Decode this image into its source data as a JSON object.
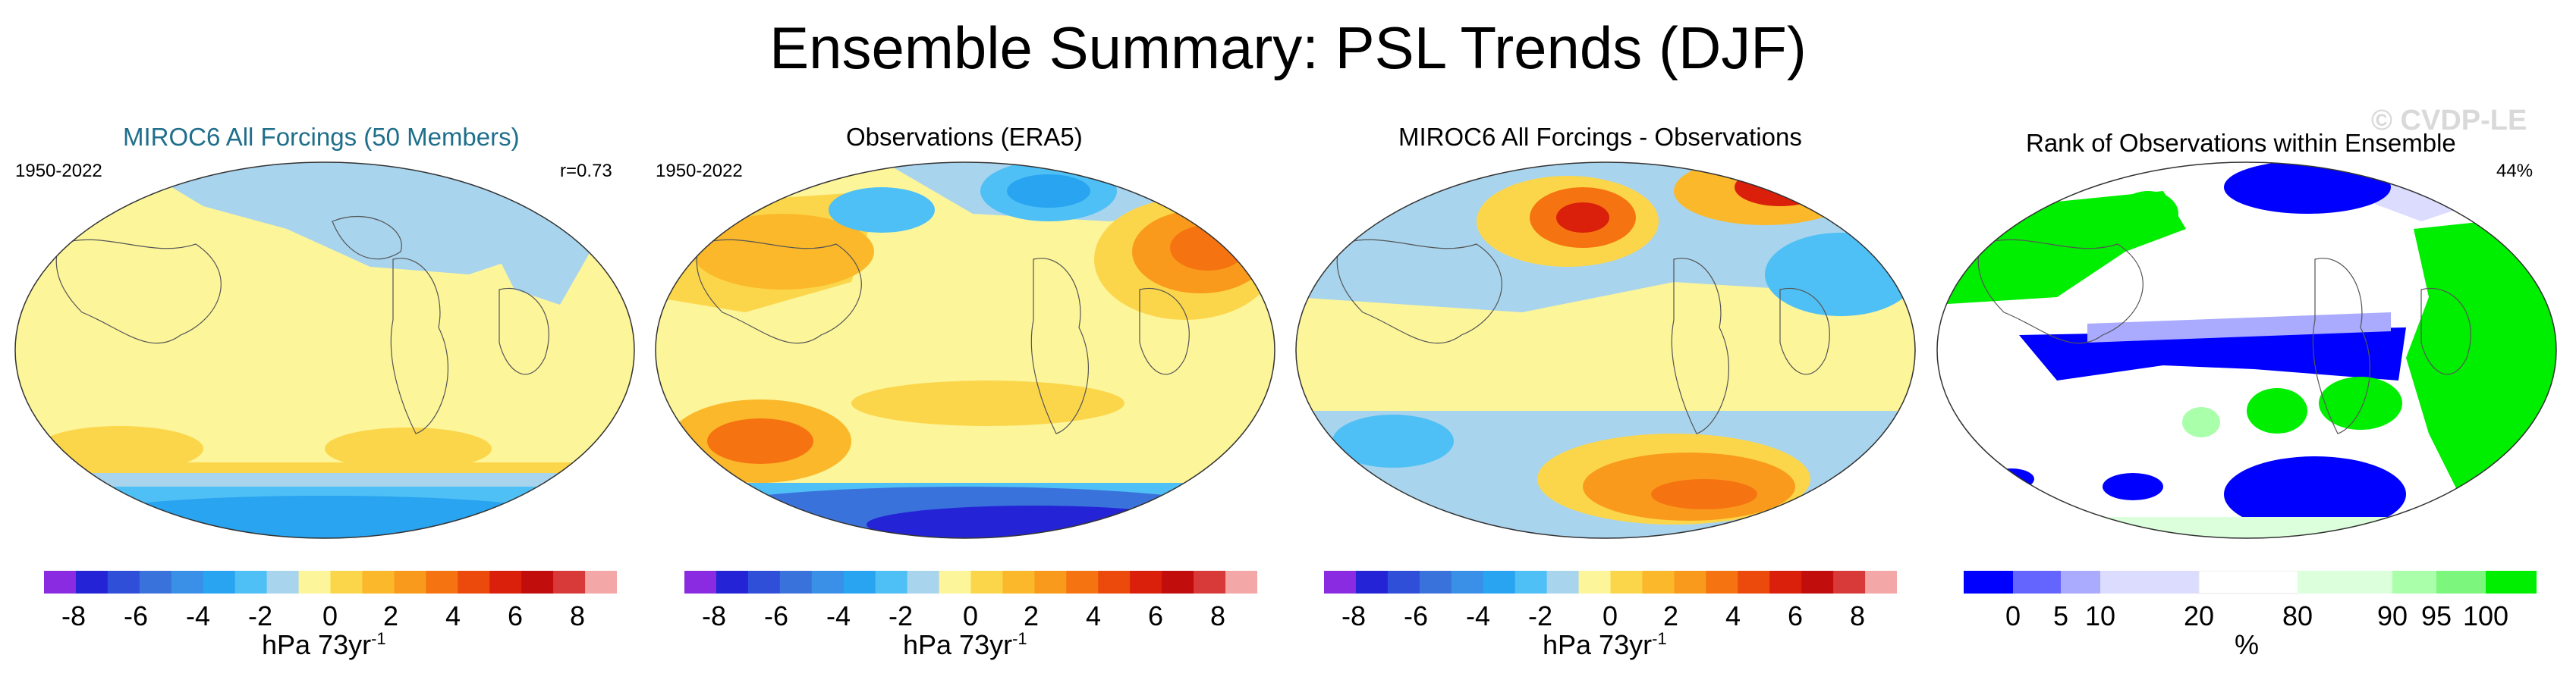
{
  "page": {
    "title": "Ensemble Summary: PSL Trends (DJF)",
    "watermark": "© CVDP-LE"
  },
  "colors": {
    "title_blue": "#1f6f8b",
    "trend_scale": [
      "#8a2be2",
      "#2424d6",
      "#2f4fd9",
      "#3a72dc",
      "#3a8fe6",
      "#28a4f0",
      "#4fc0f5",
      "#a8d4ee",
      "#fcf59a",
      "#fcd64a",
      "#fbb82a",
      "#f99a1c",
      "#f57411",
      "#ec4a0c",
      "#da1f0b",
      "#c20d0d",
      "#d83a3a",
      "#f4a7a7"
    ],
    "rank_scale": [
      "#0000ff",
      "#6464ff",
      "#aaaaff",
      "#dcdcff",
      "#ffffff",
      "#dcffdc",
      "#aaffaa",
      "#7cf67c",
      "#00ee00"
    ]
  },
  "panels": [
    {
      "title": "MIROC6 All Forcings (50 Members)",
      "left_label": "1950-2022",
      "right_label": "r=0.73",
      "colorbar": {
        "ticks": [
          "-8",
          "-6",
          "-4",
          "-2",
          "0",
          "2",
          "4",
          "6",
          "8"
        ],
        "unit": "hPa 73yr",
        "unit_exp": "-1"
      }
    },
    {
      "title": "Observations (ERA5)",
      "left_label": "1950-2022",
      "right_label": "",
      "colorbar": {
        "ticks": [
          "-8",
          "-6",
          "-4",
          "-2",
          "0",
          "2",
          "4",
          "6",
          "8"
        ],
        "unit": "hPa 73yr",
        "unit_exp": "-1"
      }
    },
    {
      "title": "MIROC6 All Forcings - Observations",
      "left_label": "",
      "right_label": "",
      "colorbar": {
        "ticks": [
          "-8",
          "-6",
          "-4",
          "-2",
          "0",
          "2",
          "4",
          "6",
          "8"
        ],
        "unit": "hPa 73yr",
        "unit_exp": "-1"
      }
    },
    {
      "title": "Rank of Observations within Ensemble",
      "left_label": "",
      "right_label": "44%",
      "colorbar": {
        "ticks": [
          "0",
          "5",
          "10",
          "20",
          "80",
          "90",
          "95",
          "100"
        ],
        "unit": "%",
        "unit_exp": ""
      }
    }
  ],
  "chart_data": [
    {
      "type": "heatmap",
      "title": "MIROC6 All Forcings (50 Members)",
      "period": "1950-2022",
      "pattern_correlation": 0.73,
      "units": "hPa 73yr^-1",
      "levels": [
        -9,
        -8,
        -7,
        -6,
        -5,
        -4,
        -3,
        -2,
        -1,
        0,
        1,
        2,
        3,
        4,
        5,
        6,
        7,
        8,
        9
      ],
      "colorbar_ticks": [
        -8,
        -6,
        -4,
        -2,
        0,
        2,
        4,
        6,
        8
      ],
      "description_of_field": "weak positive trends (0 to 2) over most of globe, weak negative (-1 to 0) over North Pacific/Arctic, strong negative (-6 to -3) over Southern Ocean"
    },
    {
      "type": "heatmap",
      "title": "Observations (ERA5)",
      "period": "1950-2022",
      "units": "hPa 73yr^-1",
      "levels": [
        -9,
        -8,
        -7,
        -6,
        -5,
        -4,
        -3,
        -2,
        -1,
        0,
        1,
        2,
        3,
        4,
        5,
        6,
        7,
        8,
        9
      ],
      "colorbar_ticks": [
        -8,
        -6,
        -4,
        -2,
        0,
        2,
        4,
        6,
        8
      ],
      "description_of_field": "negative over Arctic/North Pacific (-5), positive over North Atlantic/Europe (+5), strong negative Antarctic (-8), positive midlatitude South Pacific (+5)"
    },
    {
      "type": "heatmap",
      "title": "MIROC6 All Forcings - Observations",
      "units": "hPa 73yr^-1",
      "levels": [
        -9,
        -8,
        -7,
        -6,
        -5,
        -4,
        -3,
        -2,
        -1,
        0,
        1,
        2,
        3,
        4,
        5,
        6,
        7,
        8,
        9
      ],
      "colorbar_ticks": [
        -8,
        -6,
        -4,
        -2,
        0,
        2,
        4,
        6,
        8
      ],
      "description_of_field": "positive over Arctic/Eurasia (+6), negative over North Atlantic (-3), positive Southern Ocean (+5)"
    },
    {
      "type": "heatmap",
      "title": "Rank of Observations within Ensemble",
      "units": "%",
      "global_summary": "44%",
      "levels": [
        0,
        5,
        10,
        20,
        80,
        90,
        95,
        100
      ],
      "colorbar_ticks": [
        0,
        5,
        10,
        20,
        80,
        90,
        95,
        100
      ],
      "description_of_field": "green (>95%) over North Atlantic, Europe, Africa, parts of Pacific; blue (<5%) over tropical Pacific band, Arctic and Southern Ocean"
    }
  ]
}
